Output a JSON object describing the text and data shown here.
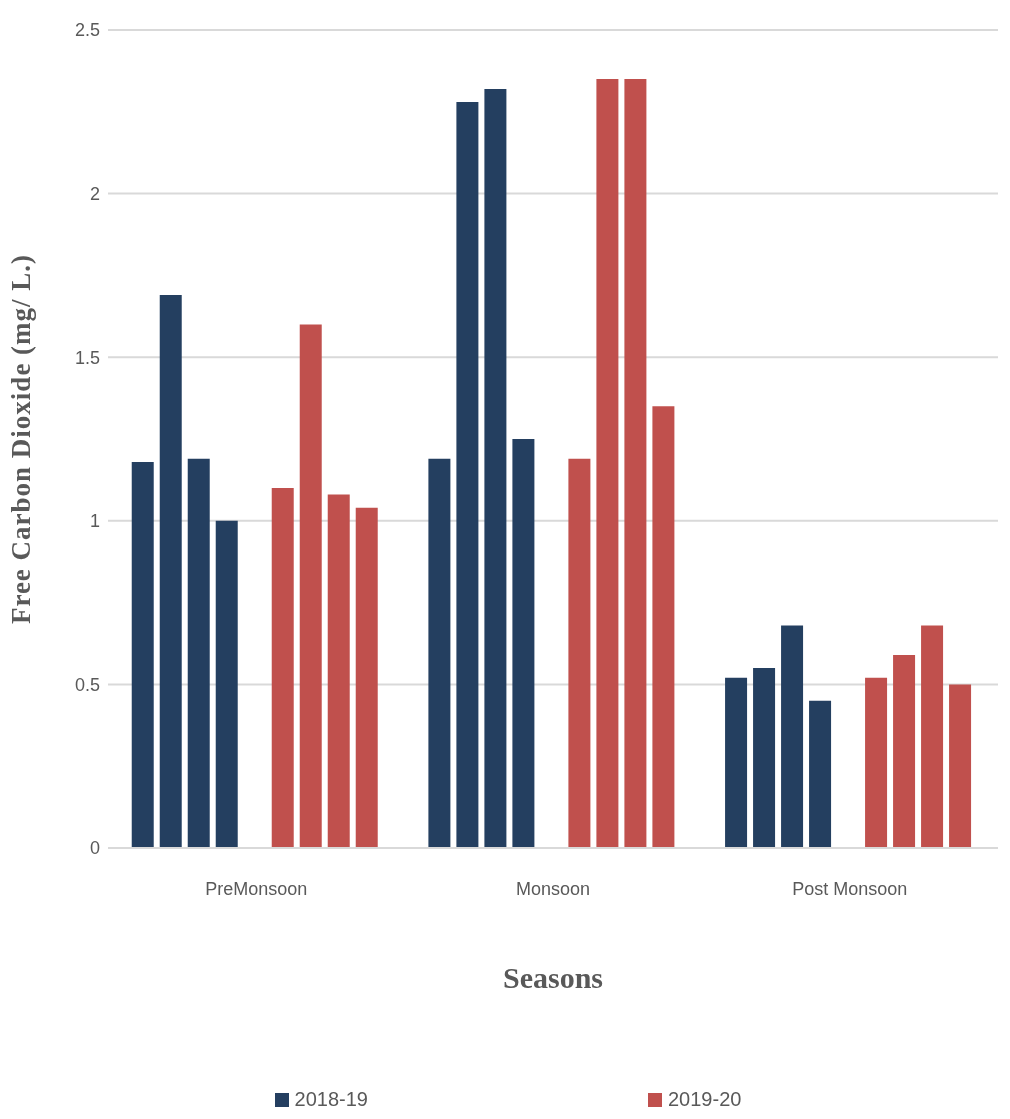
{
  "chart_data": {
    "type": "bar",
    "xlabel": "Seasons",
    "ylabel": "Free Carbon Dioxide (mg/ L.)",
    "categories": [
      "PreMonsoon",
      "Monsoon",
      "Post Monsoon"
    ],
    "series": [
      {
        "name": "2018-19",
        "color": "#243f60",
        "values": [
          1.18,
          1.19,
          0.52
        ]
      },
      {
        "color": "#243f60",
        "values": [
          1.69,
          2.28,
          0.55
        ]
      },
      {
        "color": "#243f60",
        "values": [
          1.19,
          2.32,
          0.68
        ]
      },
      {
        "color": "#243f60",
        "values": [
          1.0,
          1.25,
          0.45
        ]
      },
      {
        "name": "2019-20",
        "color": "#c0504d",
        "values": [
          1.1,
          1.19,
          0.52
        ]
      },
      {
        "color": "#c0504d",
        "values": [
          1.6,
          2.35,
          0.59
        ]
      },
      {
        "color": "#c0504d",
        "values": [
          1.08,
          2.35,
          0.68
        ]
      },
      {
        "color": "#c0504d",
        "values": [
          1.04,
          1.35,
          0.5
        ]
      }
    ],
    "ylim": [
      0,
      2.5
    ],
    "yticks": [
      0,
      0.5,
      1,
      1.5,
      2,
      2.5
    ],
    "grid": "y",
    "legend": "bottom"
  }
}
